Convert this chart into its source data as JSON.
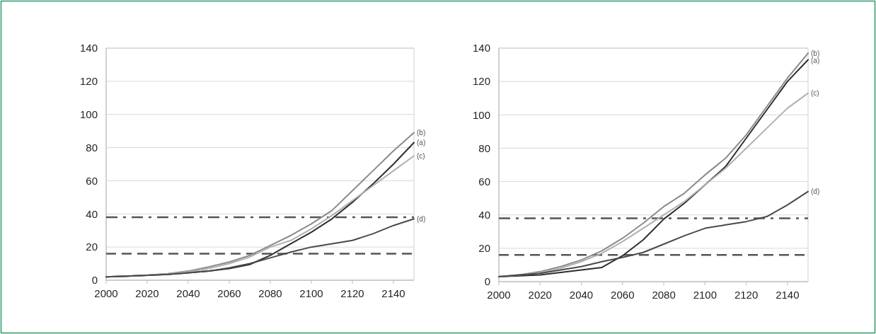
{
  "chart_data": [
    {
      "type": "line",
      "x": [
        2000,
        2010,
        2020,
        2030,
        2040,
        2050,
        2060,
        2070,
        2080,
        2090,
        2100,
        2110,
        2120,
        2130,
        2140,
        2150
      ],
      "xlim": [
        2000,
        2150
      ],
      "xticks": [
        2000,
        2020,
        2040,
        2060,
        2080,
        2100,
        2120,
        2140
      ],
      "ylim": [
        0,
        140
      ],
      "yticks": [
        0,
        20,
        40,
        60,
        80,
        100,
        120,
        140
      ],
      "grid": "y",
      "series": [
        {
          "name": "(b)",
          "color": "#8a8a8a",
          "values": [
            2,
            2.5,
            3,
            4,
            5.5,
            8,
            11,
            15,
            21,
            27,
            34,
            42,
            54,
            66,
            78,
            89
          ]
        },
        {
          "name": "(a)",
          "color": "#2e2e2e",
          "values": [
            2,
            2.5,
            3,
            3.5,
            4.5,
            5.5,
            7,
            9.5,
            15,
            22,
            29,
            37,
            47,
            58,
            70,
            83
          ]
        },
        {
          "name": "(c)",
          "color": "#b0b0b0",
          "values": [
            2,
            2.5,
            3,
            4,
            5,
            7,
            10,
            14,
            20,
            24,
            31,
            39,
            48,
            57,
            66,
            75
          ]
        },
        {
          "name": "(d)",
          "color": "#4a4a4a",
          "values": [
            2,
            2.5,
            3,
            3.5,
            4.5,
            5.5,
            7.5,
            10,
            13.5,
            17,
            20,
            22,
            24,
            28,
            33,
            37
          ]
        }
      ],
      "ref_lines": [
        {
          "axis": "y",
          "value": 38,
          "line_style": "dotted",
          "color": "#555555"
        },
        {
          "axis": "y",
          "value": 16,
          "line_style": "dashed",
          "color": "#555555"
        }
      ]
    },
    {
      "type": "line",
      "x": [
        2000,
        2010,
        2020,
        2030,
        2040,
        2050,
        2060,
        2070,
        2080,
        2090,
        2100,
        2110,
        2120,
        2130,
        2140,
        2150
      ],
      "xlim": [
        2000,
        2150
      ],
      "xticks": [
        2000,
        2020,
        2040,
        2060,
        2080,
        2100,
        2120,
        2140
      ],
      "ylim": [
        0,
        140
      ],
      "yticks": [
        0,
        20,
        40,
        60,
        80,
        100,
        120,
        140
      ],
      "grid": "y",
      "series": [
        {
          "name": "(b)",
          "color": "#8a8a8a",
          "values": [
            3,
            4,
            6,
            9,
            13,
            18.5,
            26,
            35,
            45,
            53,
            64,
            74,
            88,
            105,
            122,
            137
          ]
        },
        {
          "name": "(a)",
          "color": "#2e2e2e",
          "values": [
            3,
            3.5,
            4,
            5.5,
            7,
            8.5,
            15.5,
            25,
            37.5,
            47,
            58,
            69,
            86,
            103,
            120,
            133
          ]
        },
        {
          "name": "(c)",
          "color": "#b0b0b0",
          "values": [
            3,
            4,
            5.5,
            8,
            12,
            17,
            24,
            32,
            40,
            48,
            58,
            68,
            80,
            92,
            104,
            113
          ]
        },
        {
          "name": "(d)",
          "color": "#4a4a4a",
          "values": [
            3,
            4,
            5,
            7,
            9,
            12,
            14.5,
            17.5,
            22.5,
            27.5,
            32,
            34,
            36,
            39,
            46,
            54
          ]
        }
      ],
      "ref_lines": [
        {
          "axis": "y",
          "value": 38,
          "line_style": "dotted",
          "color": "#555555"
        },
        {
          "axis": "y",
          "value": 16,
          "line_style": "dashed",
          "color": "#555555"
        }
      ]
    }
  ]
}
